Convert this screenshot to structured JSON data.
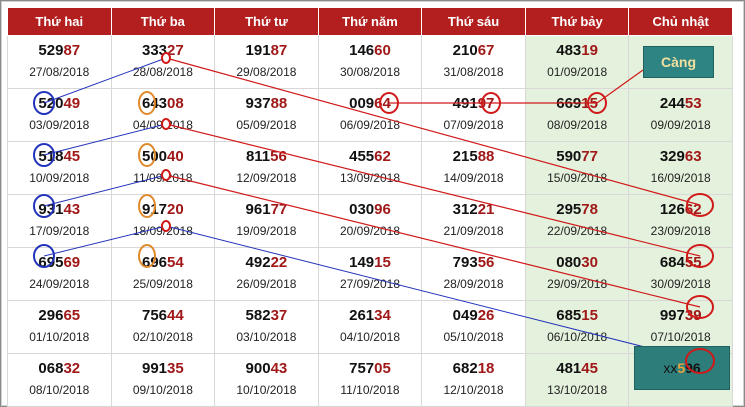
{
  "headers": [
    "Thứ hai",
    "Thứ ba",
    "Thứ tư",
    "Thứ năm",
    "Thứ sáu",
    "Thứ bảy",
    "Chủ nhật"
  ],
  "rows": [
    [
      {
        "a": "529",
        "b": "87",
        "d": "27/08/2018"
      },
      {
        "a": "333",
        "b": "27",
        "d": "28/08/2018"
      },
      {
        "a": "191",
        "b": "87",
        "d": "29/08/2018"
      },
      {
        "a": "146",
        "b": "60",
        "d": "30/08/2018"
      },
      {
        "a": "210",
        "b": "67",
        "d": "31/08/2018"
      },
      {
        "a": "483",
        "b": "19",
        "d": "01/09/2018"
      },
      {
        "a": "",
        "b": "",
        "d": ""
      }
    ],
    [
      {
        "a": "520",
        "b": "49",
        "d": "03/09/2018"
      },
      {
        "a": "643",
        "b": "08",
        "d": "04/09/2018"
      },
      {
        "a": "937",
        "b": "88",
        "d": "05/09/2018"
      },
      {
        "a": "009",
        "b": "64",
        "d": "06/09/2018"
      },
      {
        "a": "491",
        "b": "97",
        "d": "07/09/2018"
      },
      {
        "a": "669",
        "b": "15",
        "d": "08/09/2018"
      },
      {
        "a": "244",
        "b": "53",
        "d": "09/09/2018"
      }
    ],
    [
      {
        "a": "518",
        "b": "45",
        "d": "10/09/2018"
      },
      {
        "a": "500",
        "b": "40",
        "d": "11/09/2018"
      },
      {
        "a": "811",
        "b": "56",
        "d": "12/09/2018"
      },
      {
        "a": "455",
        "b": "62",
        "d": "13/09/2018"
      },
      {
        "a": "215",
        "b": "88",
        "d": "14/09/2018"
      },
      {
        "a": "590",
        "b": "77",
        "d": "15/09/2018"
      },
      {
        "a": "329",
        "b": "63",
        "d": "16/09/2018"
      }
    ],
    [
      {
        "a": "931",
        "b": "43",
        "d": "17/09/2018"
      },
      {
        "a": "917",
        "b": "20",
        "d": "18/09/2018"
      },
      {
        "a": "961",
        "b": "77",
        "d": "19/09/2018"
      },
      {
        "a": "030",
        "b": "96",
        "d": "20/09/2018"
      },
      {
        "a": "312",
        "b": "21",
        "d": "21/09/2018"
      },
      {
        "a": "295",
        "b": "78",
        "d": "22/09/2018"
      },
      {
        "a": "126",
        "b": "62",
        "d": "23/09/2018"
      }
    ],
    [
      {
        "a": "695",
        "b": "69",
        "d": "24/09/2018"
      },
      {
        "a": "696",
        "b": "54",
        "d": "25/09/2018"
      },
      {
        "a": "492",
        "b": "22",
        "d": "26/09/2018"
      },
      {
        "a": "149",
        "b": "15",
        "d": "27/09/2018"
      },
      {
        "a": "793",
        "b": "56",
        "d": "28/09/2018"
      },
      {
        "a": "080",
        "b": "30",
        "d": "29/09/2018"
      },
      {
        "a": "684",
        "b": "55",
        "d": "30/09/2018"
      }
    ],
    [
      {
        "a": "296",
        "b": "65",
        "d": "01/10/2018"
      },
      {
        "a": "756",
        "b": "44",
        "d": "02/10/2018"
      },
      {
        "a": "582",
        "b": "37",
        "d": "03/10/2018"
      },
      {
        "a": "261",
        "b": "34",
        "d": "04/10/2018"
      },
      {
        "a": "049",
        "b": "26",
        "d": "05/10/2018"
      },
      {
        "a": "685",
        "b": "15",
        "d": "06/10/2018"
      },
      {
        "a": "997",
        "b": "39",
        "d": "07/10/2018"
      }
    ],
    [
      {
        "a": "068",
        "b": "32",
        "d": "08/10/2018"
      },
      {
        "a": "991",
        "b": "35",
        "d": "09/10/2018"
      },
      {
        "a": "900",
        "b": "43",
        "d": "10/10/2018"
      },
      {
        "a": "757",
        "b": "05",
        "d": "11/10/2018"
      },
      {
        "a": "682",
        "b": "18",
        "d": "12/10/2018"
      },
      {
        "a": "481",
        "b": "45",
        "d": "13/10/2018"
      },
      {
        "a": "",
        "b": "",
        "d": ""
      }
    ]
  ],
  "cang_label": "Càng",
  "result": {
    "prefix": "xx",
    "digit": "5",
    "tail": "96"
  },
  "colors": {
    "header_bg": "#b31f1f",
    "weekend_bg": "#e4f1dc",
    "red_line": "#d01a1a",
    "blue_line": "#2233bb",
    "orange_circle": "#e08a2c",
    "teal_box": "#2d7e7b"
  }
}
